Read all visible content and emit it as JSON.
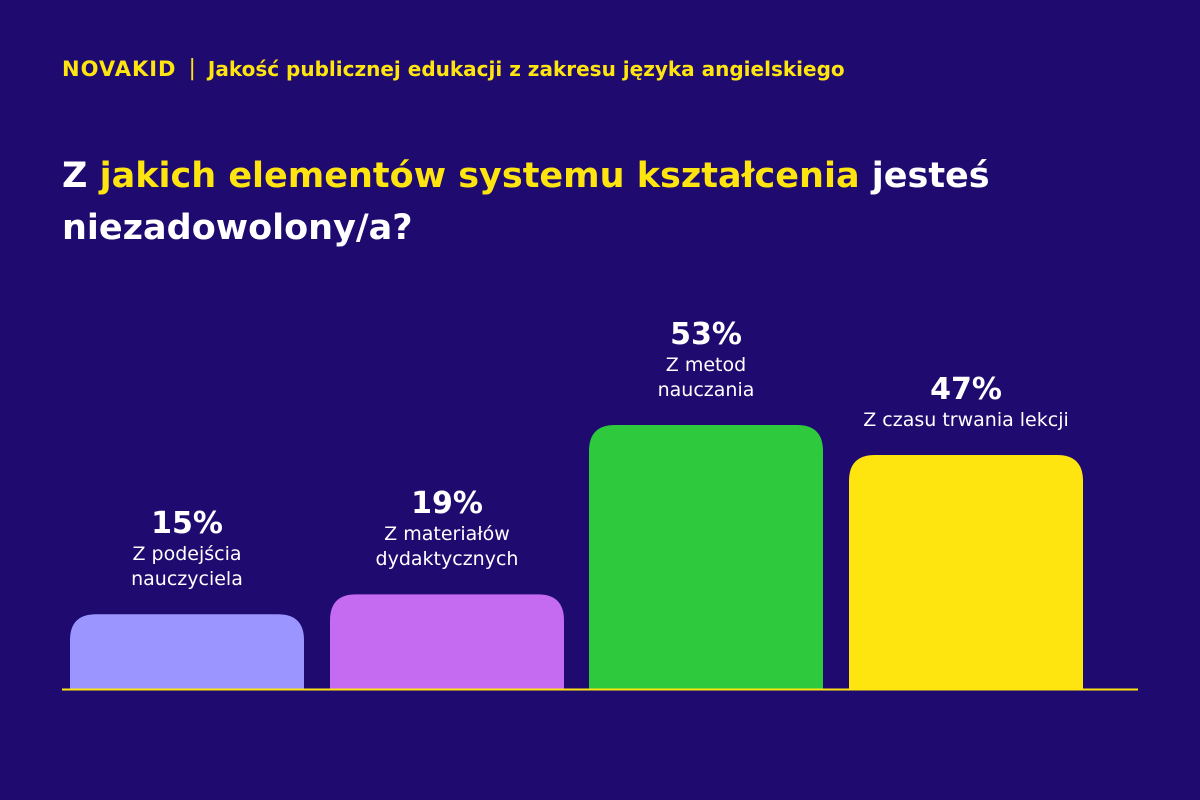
{
  "header": {
    "logo": "NOVAKID",
    "subtitle": "Jakość publicznej edukacji z zakresu języka angielskiego"
  },
  "title": {
    "part1": "Z ",
    "part2": "jakich elementów systemu kształcenia",
    "part3": " jesteś niezadowolony/a?"
  },
  "chart_data": {
    "type": "bar",
    "title": "Z jakich elementów systemu kształcenia jesteś niezadowolony/a?",
    "categories": [
      "Z podejścia nauczyciela",
      "Z materiałów dydaktycznych",
      "Z metod nauczania",
      "Z czasu trwania lekcji"
    ],
    "values": [
      15,
      19,
      53,
      47
    ],
    "value_labels": [
      "15%",
      "19%",
      "53%",
      "47%"
    ],
    "colors": [
      "#9b96ff",
      "#c46bf2",
      "#2ec93c",
      "#ffe50f"
    ],
    "ylim": [
      0,
      100
    ],
    "grid": false,
    "xlabel": "",
    "ylabel": ""
  }
}
